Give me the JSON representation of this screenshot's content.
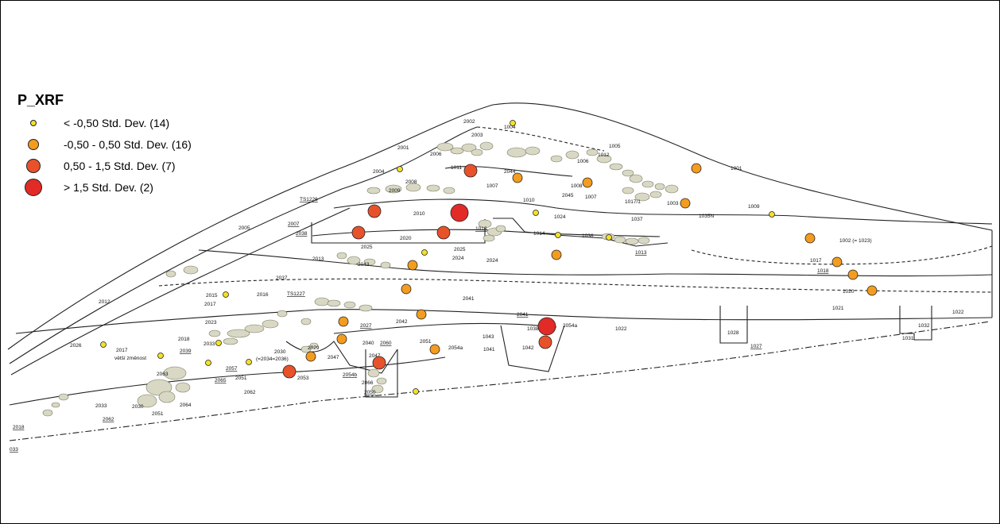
{
  "legend": {
    "title": "P_XRF",
    "items": [
      {
        "label": "< -0,50 Std. Dev. (14)",
        "color": "#f2e12a",
        "size": "small"
      },
      {
        "label": "-0,50 - 0,50 Std. Dev. (16)",
        "color": "#f39c1f",
        "size": "medium"
      },
      {
        "label": "0,50 - 1,5 Std. Dev. (7)",
        "color": "#e8522b",
        "size": "large"
      },
      {
        "label": "> 1,5 Std. Dev. (2)",
        "color": "#e22a26",
        "size": "xlarge"
      }
    ]
  },
  "colors": {
    "outline": "#222222",
    "stone_fill": "#d8d8c4",
    "stone_stroke": "#7a7a62"
  },
  "layer_labels": [
    "2002",
    "1004",
    "2003",
    "1005",
    "2001",
    "2006",
    "1012",
    "1006",
    "1001",
    "2004",
    "1011",
    "2044",
    "2008",
    "1007",
    "1008",
    "2009",
    "2045",
    "1007",
    "1017/1",
    "1003",
    "TS1226",
    "1010",
    "1009",
    "2010",
    "1024",
    "1037",
    "1035N",
    "2007",
    "2005",
    "2038",
    "1016",
    "1014",
    "1036",
    "2020",
    "2025",
    "1013",
    "1002 (= 1023)",
    "2013",
    "2025",
    "2024",
    "2024",
    "2043",
    "1017",
    "2015",
    "2016",
    "2037",
    "1018",
    "TS1227",
    "2012",
    "2017",
    "1020",
    "2041",
    "2041",
    "2042",
    "2027",
    "1021",
    "1022",
    "2023",
    "1038",
    "2054a",
    "1022",
    "1028",
    "1032",
    "2026",
    "2018",
    "2033",
    "2040",
    "2060",
    "1043",
    "1042",
    "1031",
    "2017",
    "2039",
    "2029",
    "2030",
    "2051",
    "2054a",
    "1041",
    "1027",
    "větší změnost",
    "(=2034=2036)",
    "2047",
    "2047",
    "2057",
    "2054b",
    "2063",
    "2065",
    "2051",
    "2053",
    "2066",
    "2062",
    "2050",
    "2033",
    "2030",
    "2064",
    "2051",
    "2062",
    "2018",
    "033"
  ]
}
